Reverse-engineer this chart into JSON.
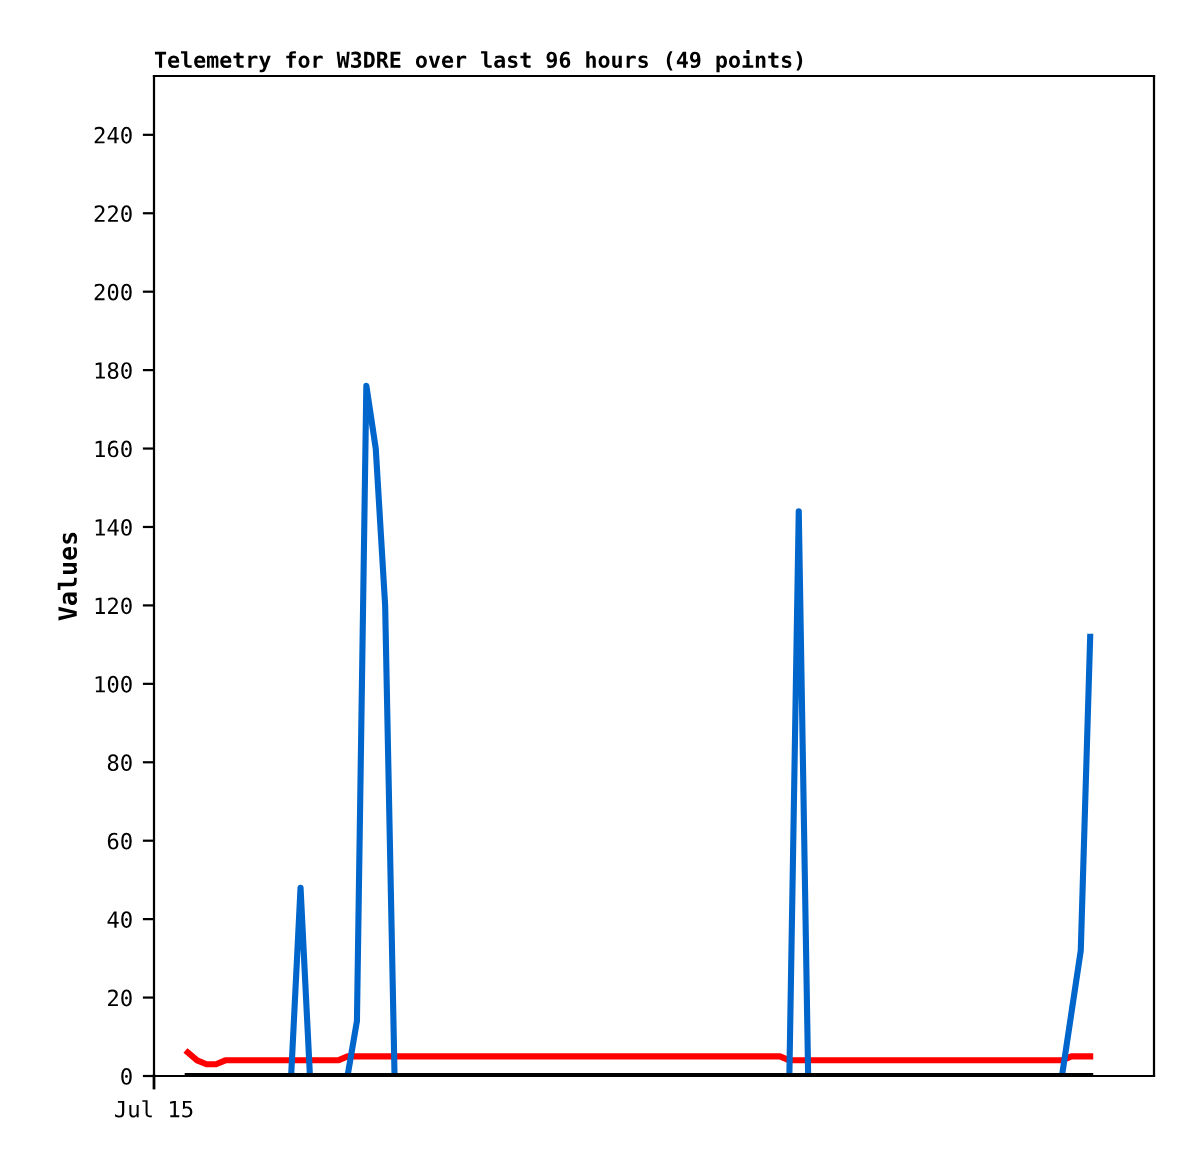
{
  "chart_data": {
    "type": "line",
    "title": "Telemetry for W3DRE over last 96 hours (49 points)",
    "ylabel": "Values",
    "annotations": [
      "Jul 15"
    ],
    "categories": [
      null,
      null,
      null,
      null,
      null,
      null,
      null,
      null,
      null,
      null,
      null,
      null,
      null,
      null,
      null,
      null,
      null,
      null,
      null,
      null,
      null,
      null,
      null,
      null,
      null,
      null,
      null,
      null,
      null,
      null,
      null,
      null,
      null,
      null,
      null,
      null,
      null,
      null,
      null,
      null,
      null,
      null,
      null,
      null,
      null,
      null,
      null,
      null,
      null,
      null,
      null,
      null,
      null,
      null,
      null,
      null,
      null,
      null,
      null,
      null,
      null,
      null,
      null,
      null,
      null,
      null,
      null,
      null,
      null,
      null,
      null,
      null,
      null,
      null,
      null,
      null,
      null,
      null,
      null,
      null,
      null,
      null,
      null,
      null,
      null,
      null,
      null,
      null,
      null,
      null,
      null,
      null,
      null,
      null,
      null,
      null,
      null
    ],
    "ylim": [
      0,
      255
    ],
    "yticks": [
      0,
      20,
      40,
      60,
      80,
      100,
      120,
      140,
      160,
      180,
      200,
      220,
      240
    ],
    "grid": false,
    "legend": false,
    "series": [
      {
        "color": "#000000",
        "values": [
          0,
          0,
          0,
          0,
          0,
          0,
          0,
          0,
          0,
          0,
          0,
          0,
          0,
          0,
          0,
          0,
          0,
          0,
          0,
          0,
          0,
          0,
          0,
          0,
          0,
          0,
          0,
          0,
          0,
          0,
          0,
          0,
          0,
          0,
          0,
          0,
          0,
          0,
          0,
          0,
          0,
          0,
          0,
          0,
          0,
          0,
          0,
          0,
          0,
          0,
          0,
          0,
          0,
          0,
          0,
          0,
          0,
          0,
          0,
          0,
          0,
          0,
          0,
          0,
          0,
          0,
          0,
          0,
          0,
          0,
          0,
          0,
          0,
          0,
          0,
          0,
          0,
          0,
          0,
          0,
          0,
          0,
          0,
          0,
          0,
          0,
          0,
          0,
          0,
          0,
          0,
          0,
          0,
          0,
          0,
          0,
          0
        ]
      },
      {
        "color": "#ff0000",
        "values": [
          6,
          4,
          3,
          3,
          4,
          4,
          4,
          4,
          4,
          4,
          4,
          4,
          4,
          4,
          4,
          4,
          4,
          5,
          5,
          5,
          5,
          5,
          5,
          5,
          5,
          5,
          5,
          5,
          5,
          5,
          5,
          5,
          5,
          5,
          5,
          5,
          5,
          5,
          5,
          5,
          5,
          5,
          5,
          5,
          5,
          5,
          5,
          5,
          5,
          5,
          5,
          5,
          5,
          5,
          5,
          5,
          5,
          5,
          5,
          5,
          5,
          5,
          5,
          5,
          4,
          4,
          4,
          4,
          4,
          4,
          4,
          4,
          4,
          4,
          4,
          4,
          4,
          4,
          4,
          4,
          4,
          4,
          4,
          4,
          4,
          4,
          4,
          4,
          4,
          4,
          4,
          4,
          4,
          4,
          5,
          5,
          5
        ]
      },
      {
        "color": "#0066cc",
        "values": [
          null,
          null,
          null,
          null,
          null,
          null,
          null,
          null,
          null,
          null,
          null,
          0,
          48,
          0,
          null,
          null,
          null,
          0,
          14,
          176,
          160,
          120,
          0,
          null,
          null,
          null,
          null,
          null,
          null,
          null,
          null,
          null,
          null,
          null,
          null,
          null,
          null,
          null,
          null,
          null,
          null,
          null,
          null,
          null,
          null,
          null,
          null,
          null,
          null,
          null,
          null,
          null,
          null,
          null,
          null,
          null,
          null,
          null,
          null,
          null,
          null,
          null,
          null,
          null,
          0,
          144,
          0,
          null,
          null,
          null,
          null,
          null,
          null,
          null,
          null,
          null,
          null,
          null,
          null,
          null,
          null,
          null,
          null,
          null,
          null,
          null,
          null,
          null,
          null,
          null,
          null,
          null,
          null,
          0,
          16,
          32,
          112
        ]
      }
    ]
  }
}
